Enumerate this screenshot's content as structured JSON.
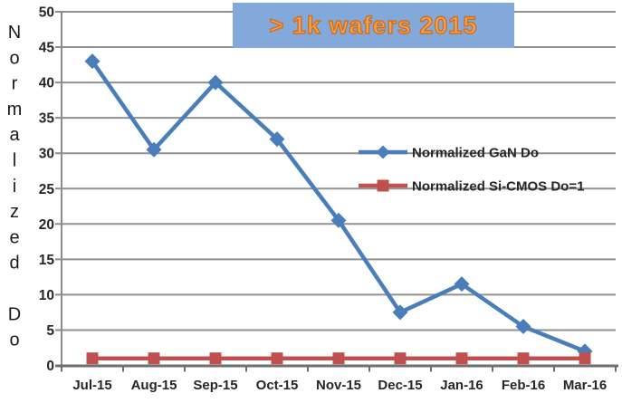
{
  "banner": {
    "label": "> 1k wafers 2015",
    "bg_color": "#82a9da",
    "text_color": "#f2a35c",
    "outline_color": "#d06f1a"
  },
  "chart_data": {
    "type": "line",
    "title": "",
    "categories": [
      "Jul-15",
      "Aug-15",
      "Sep-15",
      "Oct-15",
      "Nov-15",
      "Dec-15",
      "Jan-16",
      "Feb-16",
      "Mar-16"
    ],
    "series": [
      {
        "name": "Normalized GaN Do",
        "color": "#4a7ebb",
        "marker": "diamond",
        "values": [
          43,
          30.5,
          40,
          32,
          20.5,
          7.5,
          11.5,
          5.5,
          2
        ]
      },
      {
        "name": "Normalized Si-CMOS Do=1",
        "color": "#c0504d",
        "marker": "square",
        "values": [
          1,
          1,
          1,
          1,
          1,
          1,
          1,
          1,
          1
        ]
      }
    ],
    "xlabel": "",
    "ylabel": "Normalized Do",
    "ylim": [
      0,
      50
    ],
    "yticks": [
      0,
      5,
      10,
      15,
      20,
      25,
      30,
      35,
      40,
      45,
      50
    ],
    "grid": true,
    "legend_position": "middle-right",
    "colors": {
      "gridline": "#919191",
      "axis": "#6e6e6e",
      "tick_label": "#262626",
      "axis_title": "#1a1a1a"
    }
  }
}
